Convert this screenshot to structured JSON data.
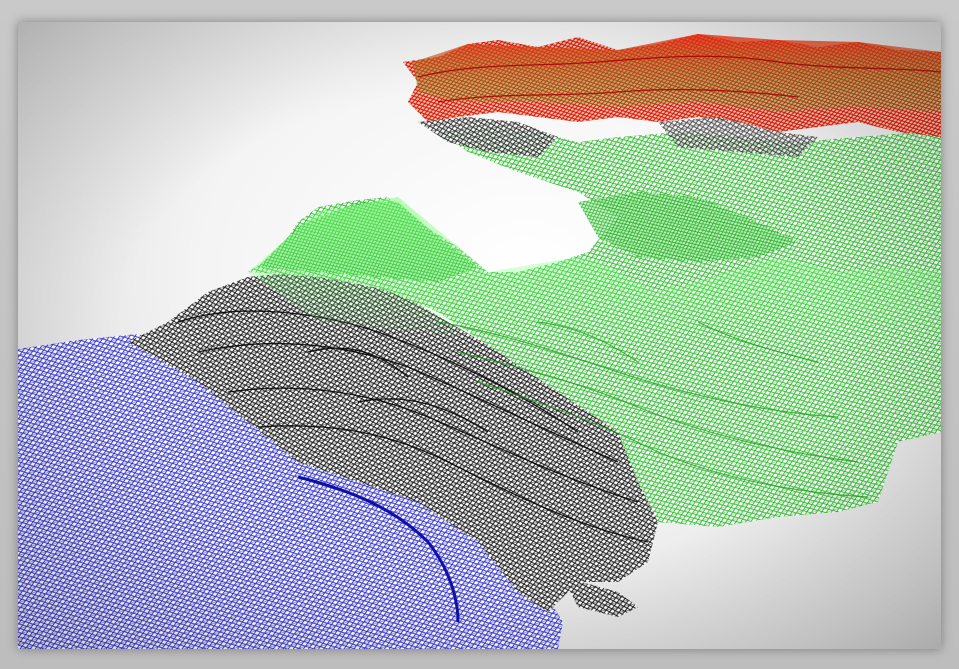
{
  "image": {
    "kind": "3d-wireframe-terrain-render",
    "colors": {
      "background": "#f2f2f2",
      "frame": "#c4c4c4",
      "low_elevation": "#1a1ac8",
      "mid_elevation": "#20c020",
      "high_elevation": "#e01818",
      "transition_elevation": "#111111",
      "highlight_green": "#8cff8c"
    },
    "regions": [
      {
        "name": "blue-lowland",
        "color_key": "low_elevation"
      },
      {
        "name": "black-cliff-terraces",
        "color_key": "transition_elevation"
      },
      {
        "name": "green-plateau",
        "color_key": "mid_elevation"
      },
      {
        "name": "red-peaks",
        "color_key": "high_elevation"
      }
    ]
  }
}
